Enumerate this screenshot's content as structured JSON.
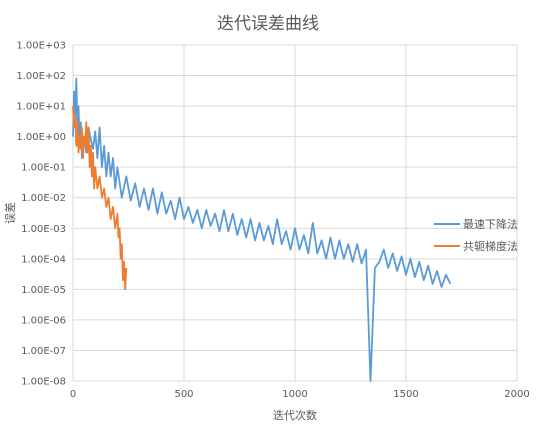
{
  "chart_data": {
    "type": "line",
    "title": "迭代误差曲线",
    "xlabel": "迭代次数",
    "ylabel": "误差",
    "x_scale": "linear",
    "y_scale": "log",
    "xlim": [
      0,
      2000
    ],
    "ylim": [
      1e-08,
      1000
    ],
    "x_ticks": [
      0,
      500,
      1000,
      1500,
      2000
    ],
    "x_tick_labels": [
      "0",
      "500",
      "1000",
      "1500",
      "2000"
    ],
    "y_ticks": [
      1000,
      100,
      10,
      1,
      0.1,
      0.01,
      0.001,
      0.0001,
      1e-05,
      1e-06,
      1e-07,
      1e-08
    ],
    "y_tick_labels": [
      "1.00E+03",
      "1.00E+02",
      "1.00E+01",
      "1.00E+00",
      "1.00E-01",
      "1.00E-02",
      "1.00E-03",
      "1.00E-04",
      "1.00E-05",
      "1.00E-06",
      "1.00E-07",
      "1.00E-08"
    ],
    "grid": {
      "x": true,
      "y": true
    },
    "legend_position": "right",
    "series": [
      {
        "name": "最速下降法",
        "color": "#5B9BD5",
        "x": [
          0,
          5,
          10,
          15,
          20,
          25,
          30,
          35,
          40,
          50,
          60,
          70,
          80,
          90,
          100,
          110,
          120,
          130,
          140,
          150,
          160,
          170,
          180,
          190,
          200,
          220,
          240,
          260,
          280,
          300,
          320,
          340,
          360,
          380,
          400,
          420,
          440,
          460,
          480,
          500,
          520,
          540,
          560,
          580,
          600,
          620,
          640,
          660,
          680,
          700,
          720,
          740,
          760,
          780,
          800,
          820,
          840,
          860,
          880,
          900,
          920,
          940,
          960,
          980,
          1000,
          1020,
          1040,
          1060,
          1080,
          1100,
          1120,
          1140,
          1160,
          1180,
          1200,
          1220,
          1240,
          1260,
          1280,
          1300,
          1320,
          1340,
          1360,
          1380,
          1400,
          1420,
          1440,
          1460,
          1480,
          1500,
          1520,
          1540,
          1560,
          1580,
          1600,
          1620,
          1640,
          1660,
          1680,
          1700
        ],
        "y": [
          1,
          30,
          5,
          80,
          2,
          10,
          0.5,
          3,
          0.2,
          1,
          0.3,
          2,
          0.8,
          0.4,
          1.5,
          0.2,
          2,
          0.1,
          0.5,
          0.05,
          0.3,
          0.05,
          0.2,
          0.02,
          0.1,
          0.01,
          0.05,
          0.008,
          0.03,
          0.005,
          0.02,
          0.004,
          0.02,
          0.003,
          0.015,
          0.003,
          0.008,
          0.002,
          0.01,
          0.002,
          0.005,
          0.0015,
          0.004,
          0.001,
          0.004,
          0.0012,
          0.003,
          0.0008,
          0.004,
          0.0008,
          0.003,
          0.0006,
          0.002,
          0.0005,
          0.002,
          0.0004,
          0.0015,
          0.0004,
          0.0012,
          0.0003,
          0.002,
          0.0003,
          0.0008,
          0.0002,
          0.001,
          0.0002,
          0.0006,
          0.00015,
          0.0015,
          0.00015,
          0.0004,
          0.0001,
          0.0005,
          0.0001,
          0.0004,
          0.0001,
          0.0003,
          8e-05,
          0.0003,
          7e-05,
          0.0002,
          0.0,
          5e-05,
          8e-05,
          0.0002,
          5e-05,
          0.00015,
          4e-05,
          0.00012,
          3e-05,
          0.0001,
          2.5e-05,
          8e-05,
          2e-05,
          6e-05,
          1.5e-05,
          4e-05,
          1.2e-05,
          3e-05,
          1.5e-05
        ]
      },
      {
        "name": "共轭梯度法",
        "color": "#ED7D31",
        "x": [
          0,
          5,
          10,
          15,
          20,
          25,
          30,
          35,
          40,
          45,
          50,
          55,
          60,
          65,
          70,
          75,
          80,
          85,
          90,
          95,
          100,
          110,
          120,
          130,
          140,
          150,
          160,
          170,
          180,
          190,
          200,
          205,
          210,
          215,
          220,
          225,
          230,
          235,
          240
        ],
        "y": [
          10,
          2,
          5,
          0.5,
          3,
          0.3,
          1,
          0.4,
          2,
          0.2,
          1,
          0.5,
          3,
          0.3,
          2,
          0.1,
          0.5,
          0.05,
          0.3,
          0.02,
          0.1,
          0.02,
          0.05,
          0.01,
          0.02,
          0.005,
          0.01,
          0.002,
          0.005,
          0.001,
          0.003,
          0.0005,
          0.001,
          0.0001,
          0.0003,
          2e-05,
          8e-05,
          1e-05,
          5e-05
        ]
      }
    ]
  }
}
